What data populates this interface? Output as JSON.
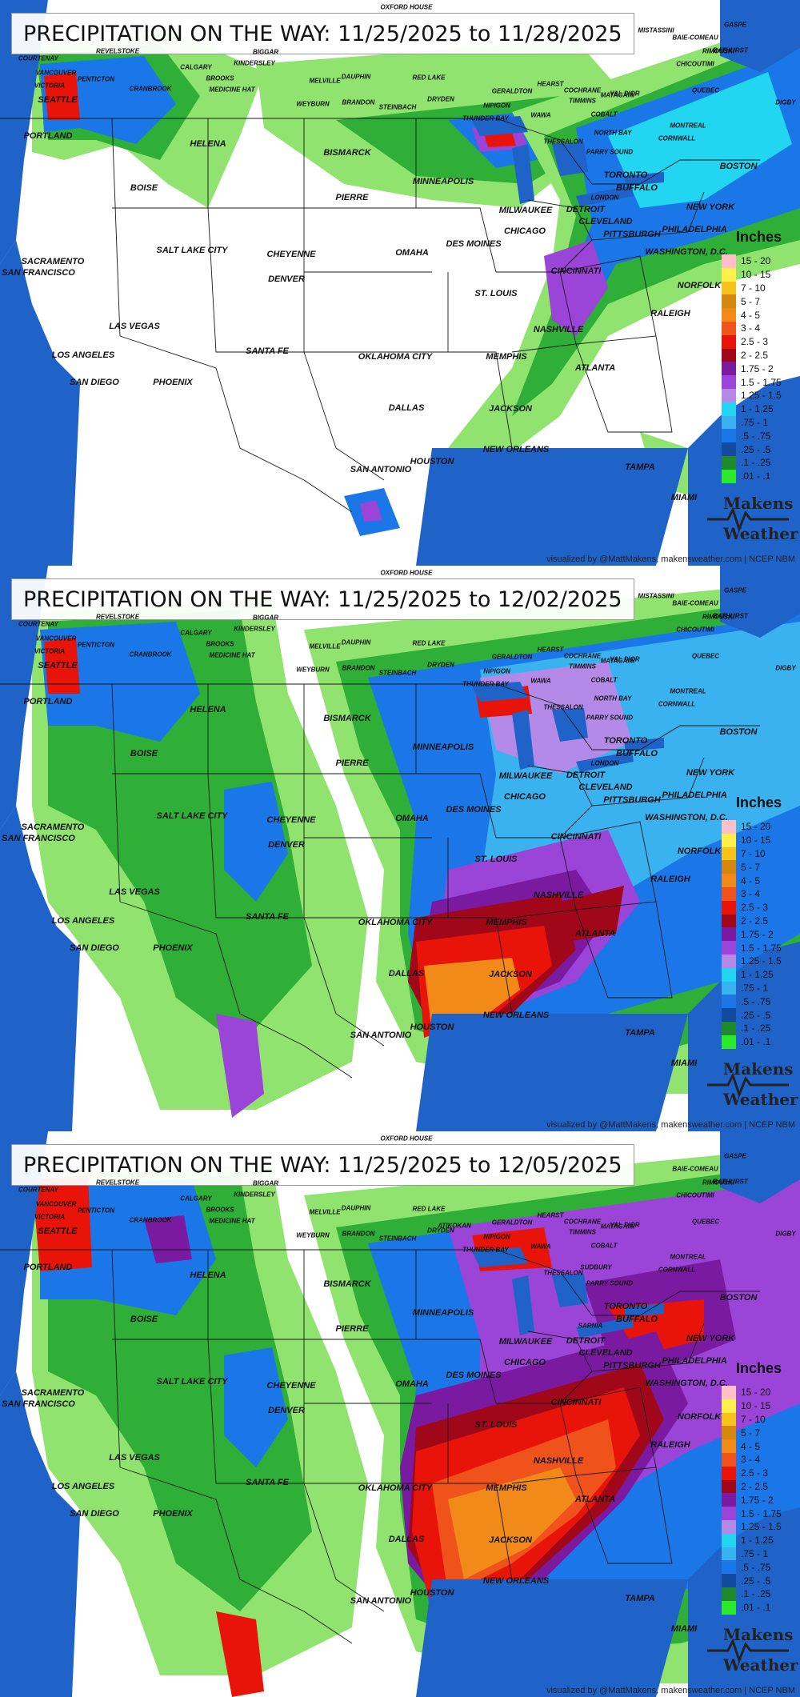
{
  "colors": {
    "water": "#1f62c8",
    "land": "#ffffff",
    "lakes": "#1f62c8",
    "borders": "#1a1a1a",
    "accent_green": "#2fae38",
    "light_green": "#8fe36e",
    "bright_green": "#2bd12b",
    "blue": "#1b77e8",
    "purple": "#8a3fd0",
    "red": "#e8140a",
    "orange": "#f28a1a",
    "dark_red": "#9c0a14"
  },
  "legend": {
    "title": "Inches",
    "bins": [
      {
        "label": "15 - 20",
        "color": "#ffc0c8"
      },
      {
        "label": "10 - 15",
        "color": "#fff04a"
      },
      {
        "label": "7 - 10",
        "color": "#f7c21a"
      },
      {
        "label": "5 - 7",
        "color": "#d48710"
      },
      {
        "label": "4 - 5",
        "color": "#f28a1a"
      },
      {
        "label": "3 - 4",
        "color": "#f0521b"
      },
      {
        "label": "2.5 - 3",
        "color": "#e8140a"
      },
      {
        "label": "2 - 2.5",
        "color": "#a0081a"
      },
      {
        "label": "1.75 - 2",
        "color": "#7a1aa0"
      },
      {
        "label": "1.5 - 1.75",
        "color": "#9a44d8"
      },
      {
        "label": "1.25 - 1.5",
        "color": "#b38ae8"
      },
      {
        "label": "1 - 1.25",
        "color": "#22d6f2"
      },
      {
        "label": ".75 - 1",
        "color": "#3ab2f0"
      },
      {
        "label": ".5 - .75",
        "color": "#1b77e8"
      },
      {
        "label": ".25 - .5",
        "color": "#124aa0"
      },
      {
        "label": ".1 - .25",
        "color": "#1f8a2c"
      },
      {
        "label": ".01 - .1",
        "color": "#2bea2b"
      }
    ]
  },
  "logo": {
    "line1": "Makens",
    "line2": "Weather"
  },
  "credit": "visualized by @MattMakens, makensweather.com | NCEP NBM",
  "panels": [
    {
      "title": "PRECIPITATION ON THE WAY: 11/25/2025 to 11/28/2025",
      "coverage": "light"
    },
    {
      "title": "PRECIPITATION ON THE WAY: 11/25/2025 to 12/02/2025",
      "coverage": "medium"
    },
    {
      "title": "PRECIPITATION ON THE WAY: 11/25/2025 to 12/05/2025",
      "coverage": "heavy"
    }
  ],
  "cities_major": [
    "SEATTLE",
    "PORTLAND",
    "BOISE",
    "HELENA",
    "SACRAMENTO",
    "SAN FRANCISCO",
    "LAS VEGAS",
    "LOS ANGELES",
    "SAN DIEGO",
    "PHOENIX",
    "SALT LAKE CITY",
    "CHEYENNE",
    "DENVER",
    "SANTA FE",
    "BISMARCK",
    "PIERRE",
    "MINNEAPOLIS",
    "DES MOINES",
    "OMAHA",
    "OKLAHOMA CITY",
    "DALLAS",
    "SAN ANTONIO",
    "HOUSTON",
    "NEW ORLEANS",
    "JACKSON",
    "MEMPHIS",
    "NASHVILLE",
    "ATLANTA",
    "ST. LOUIS",
    "CHICAGO",
    "MILWAUKEE",
    "DETROIT",
    "CLEVELAND",
    "PITTSBURGH",
    "CINCINNATI",
    "TORONTO",
    "BUFFALO",
    "NEW YORK",
    "PHILADELPHIA",
    "WASHINGTON, D.C.",
    "NORFOLK",
    "RALEIGH",
    "BOSTON",
    "TAMPA",
    "MIAMI"
  ],
  "cities_minor": [
    "VANCOUVER",
    "VICTORIA",
    "COURTENAY",
    "PENTICTON",
    "REVELSTOKE",
    "CRANBROOK",
    "CALGARY",
    "BROOKS",
    "MEDICINE HAT",
    "BIGGAR",
    "KINDERSLEY",
    "MELVILLE",
    "DAUPHIN",
    "WEYBURN",
    "BRANDON",
    "STEINBACH",
    "RED LAKE",
    "DRYDEN",
    "OXFORD HOUSE",
    "THUNDER BAY",
    "NIPIGON",
    "GERALDTON",
    "HEARST",
    "COCHRANE",
    "TIMMINS",
    "WAWA",
    "MATAGAMI",
    "VAL D'OR",
    "COBALT",
    "NORTH BAY",
    "THESSALON",
    "PARRY SOUND",
    "LONDON",
    "MONTREAL",
    "CORNWALL",
    "QUEBEC",
    "CHICOUTIMI",
    "RIMOUSKI",
    "BAIE-COMEAU",
    "GASPE",
    "BATHURST",
    "DIGBY",
    "MISTASSINI",
    "SUDBURY",
    "SARNIA",
    "ATIKOKAN"
  ]
}
